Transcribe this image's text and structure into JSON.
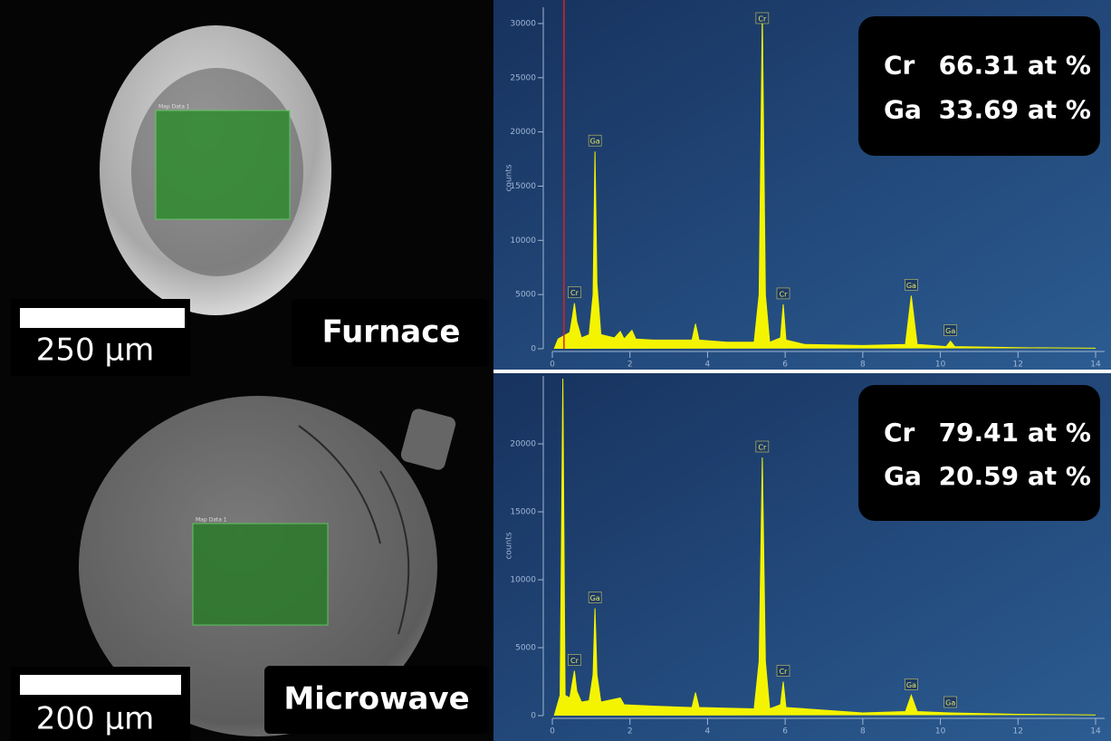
{
  "panels": [
    {
      "scale_bar": "250 µm",
      "label": "Furnace",
      "map_label": "Map Data 1"
    },
    {
      "scale_bar": "200 µm",
      "label": "Microwave",
      "map_label": "Map Data 1"
    }
  ],
  "chart_data": [
    {
      "type": "area",
      "color": "#f4f400",
      "y_label": "counts",
      "marker_x": 0.3,
      "x": [
        0.05,
        0.15,
        0.3,
        0.45,
        0.52,
        0.57,
        0.63,
        0.75,
        0.95,
        1.05,
        1.1,
        1.15,
        1.25,
        1.6,
        1.75,
        1.85,
        2.05,
        2.15,
        2.6,
        3.0,
        3.6,
        3.69,
        3.78,
        4.5,
        5.2,
        5.33,
        5.41,
        5.49,
        5.6,
        5.88,
        5.95,
        6.02,
        6.5,
        8.0,
        9.1,
        9.25,
        9.4,
        10.15,
        10.26,
        10.37,
        12,
        14
      ],
      "values": [
        0,
        900,
        1200,
        1500,
        3000,
        4200,
        2500,
        1000,
        1300,
        5000,
        18200,
        6000,
        1300,
        1000,
        1600,
        900,
        1700,
        900,
        800,
        800,
        800,
        2300,
        800,
        600,
        600,
        5000,
        31000,
        5000,
        600,
        1000,
        4100,
        800,
        400,
        300,
        400,
        4900,
        400,
        200,
        700,
        200,
        100,
        50
      ],
      "xlim": [
        0,
        14
      ],
      "xticks": [
        0,
        2,
        4,
        6,
        8,
        10,
        12,
        14
      ],
      "ylim": [
        0,
        31500
      ],
      "yticks": [
        0,
        5000,
        10000,
        15000,
        20000,
        25000,
        30000
      ],
      "peak_labels": [
        {
          "label": "Cr",
          "x": 0.57
        },
        {
          "label": "Ga",
          "x": 1.1
        },
        {
          "label": "Cr",
          "x": 5.41
        },
        {
          "label": "Cr",
          "x": 5.95
        },
        {
          "label": "Ga",
          "x": 9.25
        },
        {
          "label": "Ga",
          "x": 10.26
        }
      ],
      "composition": [
        {
          "element": "Cr",
          "value": 66.31,
          "unit": "at %"
        },
        {
          "element": "Ga",
          "value": 33.69,
          "unit": "at %"
        }
      ]
    },
    {
      "type": "area",
      "color": "#f4f400",
      "y_label": "counts",
      "x": [
        0.05,
        0.2,
        0.27,
        0.33,
        0.45,
        0.52,
        0.57,
        0.63,
        0.75,
        0.95,
        1.05,
        1.1,
        1.15,
        1.25,
        1.75,
        1.85,
        2.6,
        3.6,
        3.69,
        3.78,
        5.2,
        5.33,
        5.41,
        5.49,
        5.6,
        5.88,
        5.95,
        6.02,
        8,
        9.1,
        9.25,
        9.4,
        10.26,
        12,
        14
      ],
      "values": [
        0,
        1500,
        24800,
        1500,
        1300,
        2500,
        3300,
        1800,
        1000,
        1100,
        3000,
        7900,
        3000,
        1000,
        1300,
        800,
        700,
        600,
        1700,
        600,
        500,
        4000,
        19000,
        4000,
        500,
        800,
        2500,
        600,
        200,
        300,
        1500,
        300,
        200,
        100,
        50
      ],
      "xlim": [
        0,
        14
      ],
      "xticks": [
        0,
        2,
        4,
        6,
        8,
        10,
        12,
        14
      ],
      "ylim": [
        0,
        25000
      ],
      "yticks": [
        0,
        5000,
        10000,
        15000,
        20000
      ],
      "peak_labels": [
        {
          "label": "Cr",
          "x": 0.57
        },
        {
          "label": "Ga",
          "x": 1.1
        },
        {
          "label": "Cr",
          "x": 5.41
        },
        {
          "label": "Cr",
          "x": 5.95
        },
        {
          "label": "Ga",
          "x": 9.25
        },
        {
          "label": "Ga",
          "x": 10.26
        }
      ],
      "composition": [
        {
          "element": "Cr",
          "value": 79.41,
          "unit": "at %"
        },
        {
          "element": "Ga",
          "value": 20.59,
          "unit": "at %"
        }
      ]
    }
  ]
}
